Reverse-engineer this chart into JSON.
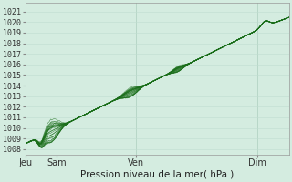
{
  "xlabel": "Pression niveau de la mer( hPa )",
  "bg_color": "#d4ece0",
  "grid_color_minor": "#c0ddd0",
  "grid_color_major": "#a8ccb8",
  "line_color": "#1a6e1a",
  "ylim": [
    1007.5,
    1021.8
  ],
  "yticks": [
    1008,
    1009,
    1010,
    1011,
    1012,
    1013,
    1014,
    1015,
    1016,
    1017,
    1018,
    1019,
    1020,
    1021
  ],
  "xtick_positions": [
    0.0,
    0.12,
    0.42,
    0.88
  ],
  "xtick_labels": [
    "Jeu",
    "Sam",
    "Ven",
    "Dim"
  ],
  "figsize": [
    3.2,
    2.0
  ],
  "dpi": 100
}
